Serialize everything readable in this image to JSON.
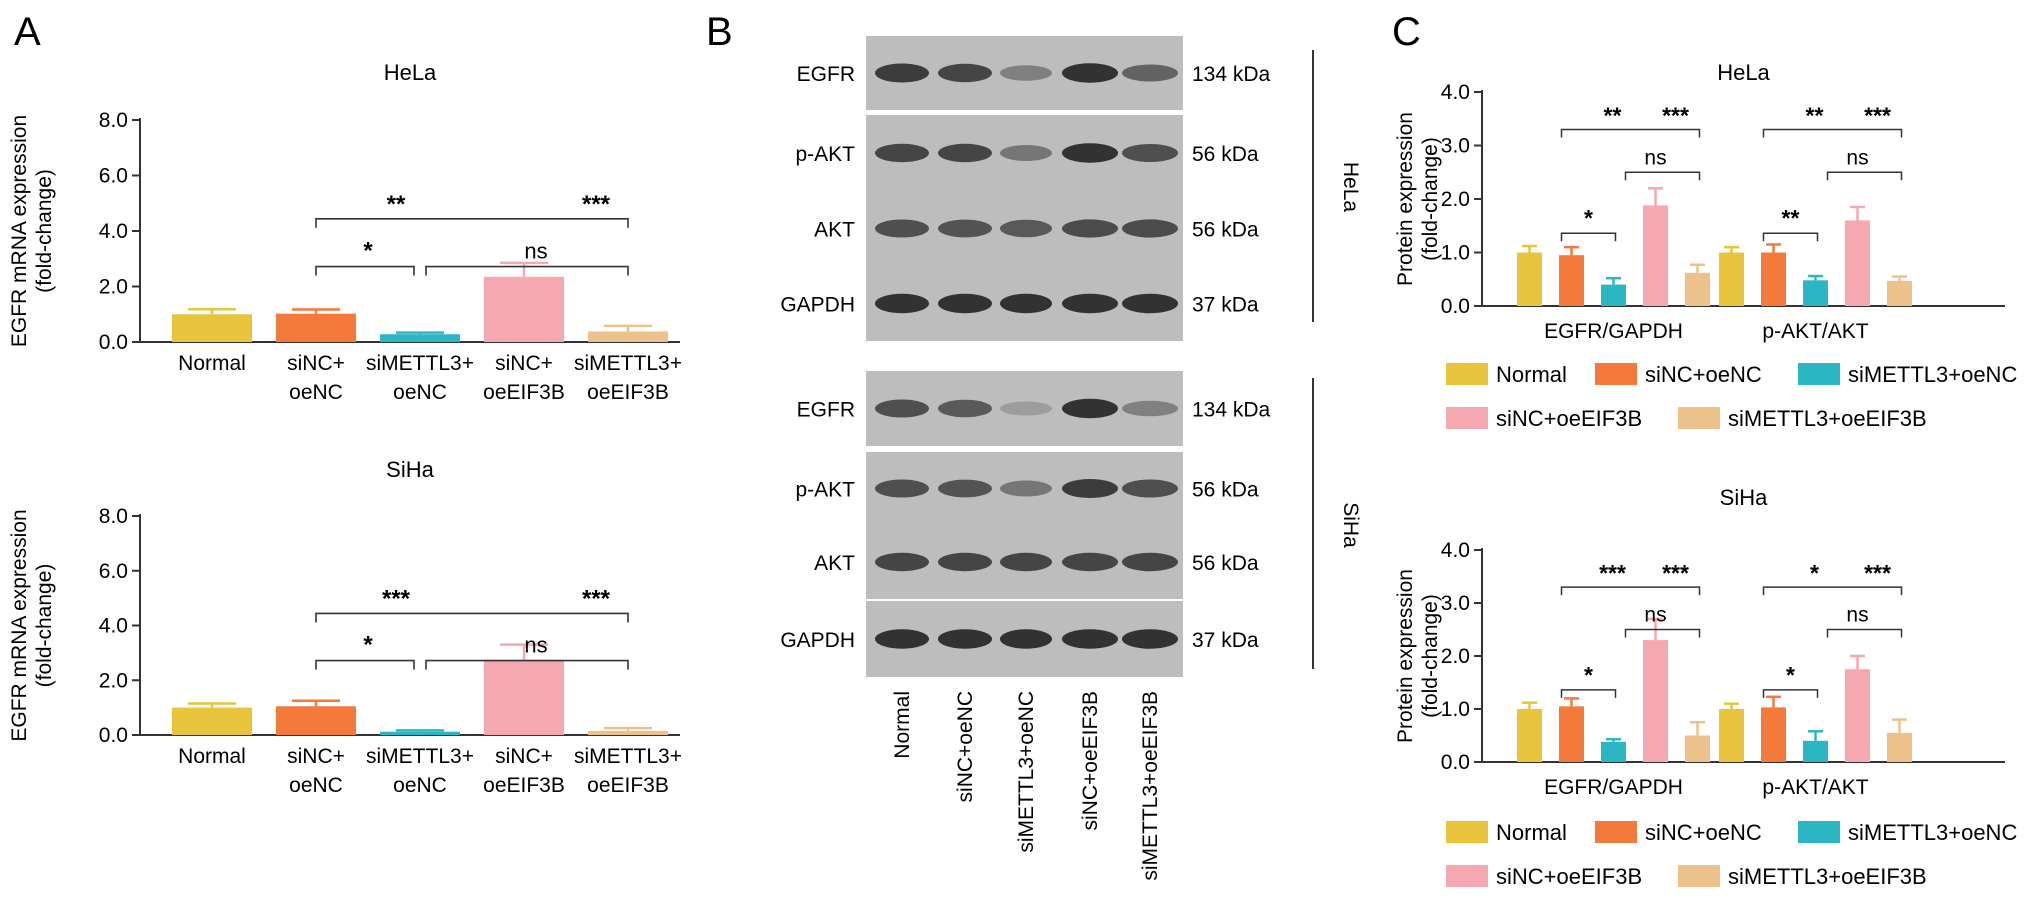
{
  "panel_labels": {
    "a": "A",
    "b": "B",
    "c": "C"
  },
  "colors": {
    "Normal": "#E8C43C",
    "siNC+oeNC": "#F47A3C",
    "siMETTL3+oeNC": "#2BB6C4",
    "siNC+oeEIF3B": "#F6A8B0",
    "siMETTL3+oeEIF3B": "#EDC28A",
    "axis": "#333333"
  },
  "chart_data": [
    {
      "id": "A-HeLa",
      "type": "bar",
      "title": "HeLa",
      "ylabel_lines": [
        "EGFR mRNA expression",
        "(fold-change)"
      ],
      "ylim": [
        0,
        8
      ],
      "yticks": [
        "0.0",
        "2.0",
        "4.0",
        "6.0",
        "8.0"
      ],
      "categories": [
        [
          "Normal"
        ],
        [
          "siNC+",
          "oeNC"
        ],
        [
          "siMETTL3+",
          "oeNC"
        ],
        [
          "siNC+",
          "oeEIF3B"
        ],
        [
          "siMETTL3+",
          "oeEIF3B"
        ]
      ],
      "values": [
        1.0,
        1.02,
        0.28,
        2.35,
        0.38
      ],
      "errors": [
        0.18,
        0.15,
        0.06,
        0.5,
        0.2
      ],
      "annotations": [
        {
          "from": 1,
          "to": 4,
          "label": "**",
          "label2": "***"
        },
        {
          "from": 1,
          "to": 2,
          "label": "*"
        },
        {
          "from": 2,
          "to": 4,
          "label": "ns"
        }
      ]
    },
    {
      "id": "A-SiHa",
      "type": "bar",
      "title": "SiHa",
      "ylabel_lines": [
        "EGFR mRNA expression",
        "(fold-change)"
      ],
      "ylim": [
        0,
        8
      ],
      "yticks": [
        "0.0",
        "2.0",
        "4.0",
        "6.0",
        "8.0"
      ],
      "categories": [
        [
          "Normal"
        ],
        [
          "siNC+",
          "oeNC"
        ],
        [
          "siMETTL3+",
          "oeNC"
        ],
        [
          "siNC+",
          "oeEIF3B"
        ],
        [
          "siMETTL3+",
          "oeEIF3B"
        ]
      ],
      "values": [
        1.0,
        1.05,
        0.12,
        2.75,
        0.15
      ],
      "errors": [
        0.15,
        0.2,
        0.05,
        0.55,
        0.1
      ],
      "annotations": [
        {
          "from": 1,
          "to": 4,
          "label": "***",
          "label2": "***"
        },
        {
          "from": 1,
          "to": 2,
          "label": "*"
        },
        {
          "from": 2,
          "to": 4,
          "label": "ns"
        }
      ]
    },
    {
      "id": "C-HeLa",
      "type": "bar",
      "title": "HeLa",
      "ylabel_lines": [
        "Protein expression",
        "(fold-change)"
      ],
      "ylim": [
        0,
        4
      ],
      "yticks": [
        "0.0",
        "1.0",
        "2.0",
        "3.0",
        "4.0"
      ],
      "groups": [
        "EGFR/GAPDH",
        "p-AKT/AKT"
      ],
      "series": [
        {
          "name": "Normal",
          "values": [
            1.0,
            1.0
          ],
          "errors": [
            0.12,
            0.1
          ]
        },
        {
          "name": "siNC+oeNC",
          "values": [
            0.95,
            1.0
          ],
          "errors": [
            0.15,
            0.15
          ]
        },
        {
          "name": "siMETTL3+oeNC",
          "values": [
            0.4,
            0.48
          ],
          "errors": [
            0.12,
            0.08
          ]
        },
        {
          "name": "siNC+oeEIF3B",
          "values": [
            1.88,
            1.6
          ],
          "errors": [
            0.32,
            0.25
          ]
        },
        {
          "name": "siMETTL3+oeEIF3B",
          "values": [
            0.62,
            0.47
          ],
          "errors": [
            0.15,
            0.08
          ]
        }
      ],
      "annotations": [
        [
          {
            "from": 1,
            "to": 4,
            "label": "**",
            "label2": "***"
          },
          {
            "from": 1,
            "to": 2,
            "label": "*"
          },
          {
            "from": 2,
            "to": 4,
            "label": "ns"
          }
        ],
        [
          {
            "from": 1,
            "to": 4,
            "label": "**",
            "label2": "***"
          },
          {
            "from": 1,
            "to": 2,
            "label": "**"
          },
          {
            "from": 2,
            "to": 4,
            "label": "ns"
          }
        ]
      ]
    },
    {
      "id": "C-SiHa",
      "type": "bar",
      "title": "SiHa",
      "ylabel_lines": [
        "Protein expression",
        "(fold-change)"
      ],
      "ylim": [
        0,
        4
      ],
      "yticks": [
        "0.0",
        "1.0",
        "2.0",
        "3.0",
        "4.0"
      ],
      "groups": [
        "EGFR/GAPDH",
        "p-AKT/AKT"
      ],
      "series": [
        {
          "name": "Normal",
          "values": [
            1.0,
            1.0
          ],
          "errors": [
            0.12,
            0.1
          ]
        },
        {
          "name": "siNC+oeNC",
          "values": [
            1.05,
            1.03
          ],
          "errors": [
            0.15,
            0.2
          ]
        },
        {
          "name": "siMETTL3+oeNC",
          "values": [
            0.38,
            0.4
          ],
          "errors": [
            0.05,
            0.18
          ]
        },
        {
          "name": "siNC+oeEIF3B",
          "values": [
            2.3,
            1.75
          ],
          "errors": [
            0.4,
            0.25
          ]
        },
        {
          "name": "siMETTL3+oeEIF3B",
          "values": [
            0.5,
            0.55
          ],
          "errors": [
            0.25,
            0.25
          ]
        }
      ],
      "annotations": [
        [
          {
            "from": 1,
            "to": 4,
            "label": "***",
            "label2": "***"
          },
          {
            "from": 1,
            "to": 2,
            "label": "*"
          },
          {
            "from": 2,
            "to": 4,
            "label": "ns"
          }
        ],
        [
          {
            "from": 1,
            "to": 4,
            "label": "*",
            "label2": "***"
          },
          {
            "from": 1,
            "to": 2,
            "label": "*"
          },
          {
            "from": 2,
            "to": 4,
            "label": "ns"
          }
        ]
      ]
    }
  ],
  "legend": [
    "Normal",
    "siNC+oeNC",
    "siMETTL3+oeNC",
    "siNC+oeEIF3B",
    "siMETTL3+oeEIF3B"
  ],
  "blot": {
    "proteins": [
      "EGFR",
      "p-AKT",
      "AKT",
      "GAPDH"
    ],
    "weights": [
      "134 kDa",
      "56 kDa",
      "56 kDa",
      "37 kDa"
    ],
    "cell_lines": [
      "HeLa",
      "SiHa"
    ],
    "lanes": [
      "Normal",
      "siNC+oeNC",
      "siMETTL3+oeNC",
      "siNC+oeEIF3B",
      "siMETTL3+oeEIF3B"
    ],
    "band_intensity": [
      [
        [
          0.9,
          0.85,
          0.55,
          0.95,
          0.7
        ],
        [
          0.85,
          0.85,
          0.6,
          0.95,
          0.8
        ],
        [
          0.8,
          0.78,
          0.75,
          0.82,
          0.82
        ],
        [
          0.95,
          0.95,
          0.95,
          0.95,
          0.95
        ]
      ],
      [
        [
          0.8,
          0.75,
          0.4,
          0.95,
          0.55
        ],
        [
          0.8,
          0.78,
          0.6,
          0.9,
          0.8
        ],
        [
          0.85,
          0.85,
          0.85,
          0.85,
          0.85
        ],
        [
          0.95,
          0.95,
          0.95,
          0.95,
          0.95
        ]
      ]
    ]
  }
}
